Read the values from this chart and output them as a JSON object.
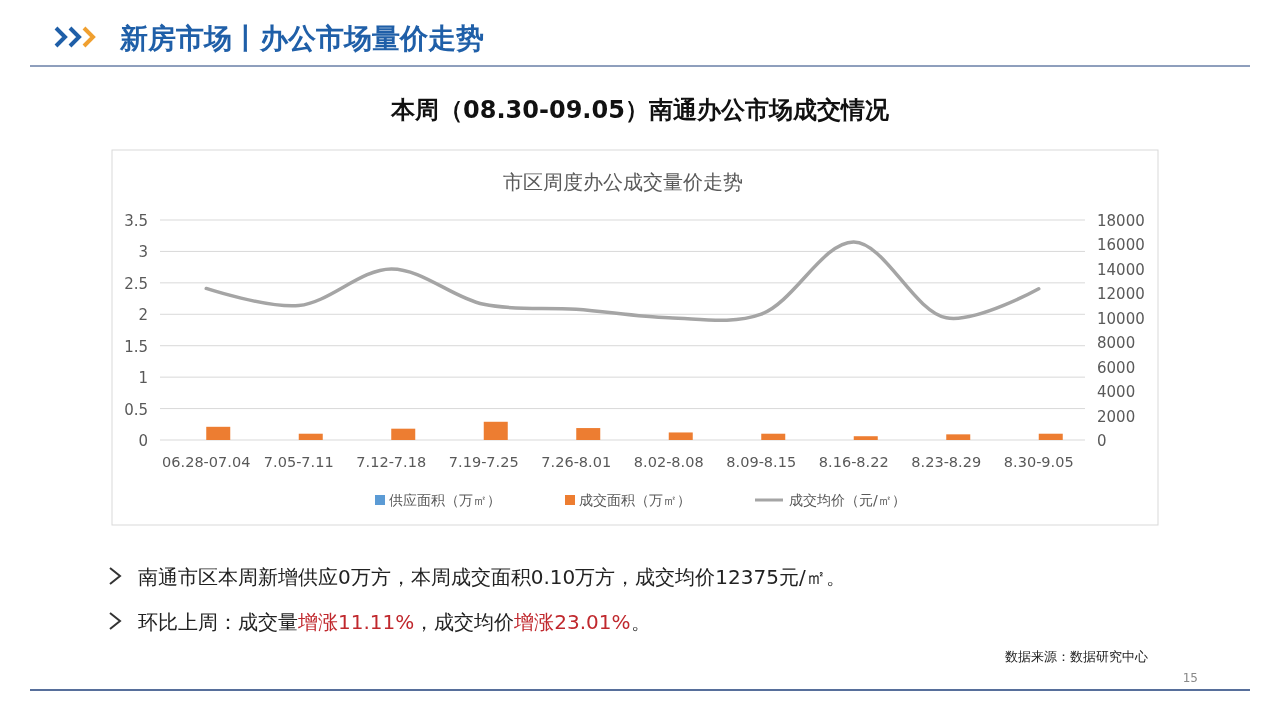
{
  "chart_data": {
    "type": "bar",
    "title": "市区周度办公成交量价走势",
    "subtitle": "本周（08.30-09.05）南通办公市场成交情况",
    "categories": [
      "06.28-07.04",
      "7.05-7.11",
      "7.12-7.18",
      "7.19-7.25",
      "7.26-8.01",
      "8.02-8.08",
      "8.09-8.15",
      "8.16-8.22",
      "8.23-8.29",
      "8.30-9.05"
    ],
    "series": [
      {
        "name": "供应面积（万㎡）",
        "color": "#5b9bd5",
        "values": [
          0,
          0,
          0,
          0,
          0,
          0,
          0,
          0,
          0,
          0
        ]
      },
      {
        "name": "成交面积（万㎡）",
        "color": "#ed7d31",
        "values": [
          0.21,
          0.1,
          0.18,
          0.29,
          0.19,
          0.12,
          0.1,
          0.06,
          0.09,
          0.1
        ]
      },
      {
        "name": "成交均价（元/㎡）",
        "type": "line",
        "axis": "y2",
        "color": "#a5a5a5",
        "values": [
          12400,
          11000,
          14000,
          11100,
          10700,
          10000,
          10300,
          16200,
          10000,
          12375
        ]
      }
    ],
    "ylim": [
      0,
      3.5
    ],
    "yticks": [
      0,
      0.5,
      1,
      1.5,
      2,
      2.5,
      3,
      3.5
    ],
    "y2lim": [
      0,
      18000
    ],
    "y2ticks": [
      0,
      2000,
      4000,
      6000,
      8000,
      10000,
      12000,
      14000,
      16000,
      18000
    ],
    "grid": "y",
    "legend": "bottom",
    "marker": "none",
    "line_style": "solid",
    "annotations": [
      "新房市场丨办公市场量价走势",
      "南通市区本周新增供应0万方，本周成交面积0.10万方，成交均价12375元/㎡。",
      "环比上周：成交量",
      "增涨11.11%",
      "，成交均价",
      "增涨23.01%",
      "。",
      "数据来源：数据研究中心",
      "15"
    ]
  }
}
